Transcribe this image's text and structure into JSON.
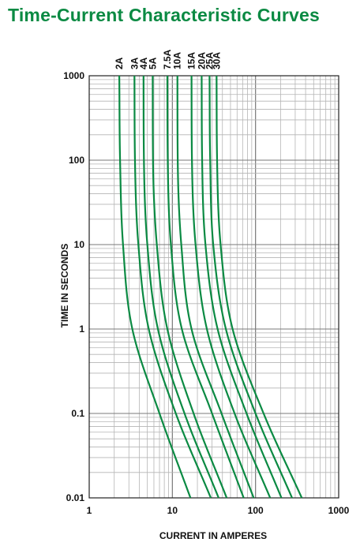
{
  "title": "Time-Current Characteristic Curves",
  "chart_data": {
    "type": "line",
    "title": "Time-Current Characteristic Curves",
    "xlabel": "CURRENT IN AMPERES",
    "ylabel": "TIME IN SECONDS",
    "xscale": "log",
    "yscale": "log",
    "xlim": [
      1,
      1000
    ],
    "ylim": [
      0.01,
      1000
    ],
    "x_ticks": [
      "1",
      "10",
      "100",
      "1000"
    ],
    "y_ticks": [
      "1000",
      "100",
      "10",
      "1",
      "0.1",
      "0.01"
    ],
    "grid": true,
    "line_color": "#0b8a43",
    "series": [
      {
        "name": "2A",
        "points": [
          [
            2.3,
            1000
          ],
          [
            2.35,
            100
          ],
          [
            2.55,
            10
          ],
          [
            3.3,
            1
          ],
          [
            7,
            0.1
          ],
          [
            16.5,
            0.01
          ]
        ]
      },
      {
        "name": "3A",
        "points": [
          [
            3.5,
            1000
          ],
          [
            3.55,
            100
          ],
          [
            3.9,
            10
          ],
          [
            5.2,
            1
          ],
          [
            11,
            0.1
          ],
          [
            29,
            0.01
          ]
        ]
      },
      {
        "name": "4A",
        "points": [
          [
            4.5,
            1000
          ],
          [
            4.55,
            100
          ],
          [
            5.0,
            10
          ],
          [
            6.7,
            1
          ],
          [
            14,
            0.1
          ],
          [
            36,
            0.01
          ]
        ]
      },
      {
        "name": "5A",
        "points": [
          [
            5.8,
            1000
          ],
          [
            5.85,
            100
          ],
          [
            6.5,
            10
          ],
          [
            8.7,
            1
          ],
          [
            18,
            0.1
          ],
          [
            45,
            0.01
          ]
        ]
      },
      {
        "name": "7.5A",
        "points": [
          [
            8.7,
            1000
          ],
          [
            8.8,
            100
          ],
          [
            9.6,
            10
          ],
          [
            13,
            1
          ],
          [
            30,
            0.1
          ],
          [
            72,
            0.01
          ]
        ]
      },
      {
        "name": "10A",
        "points": [
          [
            11.5,
            1000
          ],
          [
            11.6,
            100
          ],
          [
            12.8,
            10
          ],
          [
            17,
            1
          ],
          [
            39,
            0.1
          ],
          [
            95,
            0.01
          ]
        ]
      },
      {
        "name": "15A",
        "points": [
          [
            17,
            1000
          ],
          [
            17.2,
            100
          ],
          [
            19,
            10
          ],
          [
            26,
            1
          ],
          [
            56,
            0.1
          ],
          [
            150,
            0.01
          ]
        ]
      },
      {
        "name": "20A",
        "points": [
          [
            22.5,
            1000
          ],
          [
            22.8,
            100
          ],
          [
            25,
            10
          ],
          [
            35,
            1
          ],
          [
            78,
            0.1
          ],
          [
            205,
            0.01
          ]
        ]
      },
      {
        "name": "25A",
        "points": [
          [
            28,
            1000
          ],
          [
            28.5,
            100
          ],
          [
            31,
            10
          ],
          [
            44,
            1
          ],
          [
            100,
            0.1
          ],
          [
            275,
            0.01
          ]
        ]
      },
      {
        "name": "30A",
        "points": [
          [
            34,
            1000
          ],
          [
            34.5,
            100
          ],
          [
            38,
            10
          ],
          [
            53,
            1
          ],
          [
            125,
            0.1
          ],
          [
            360,
            0.01
          ]
        ]
      }
    ]
  }
}
